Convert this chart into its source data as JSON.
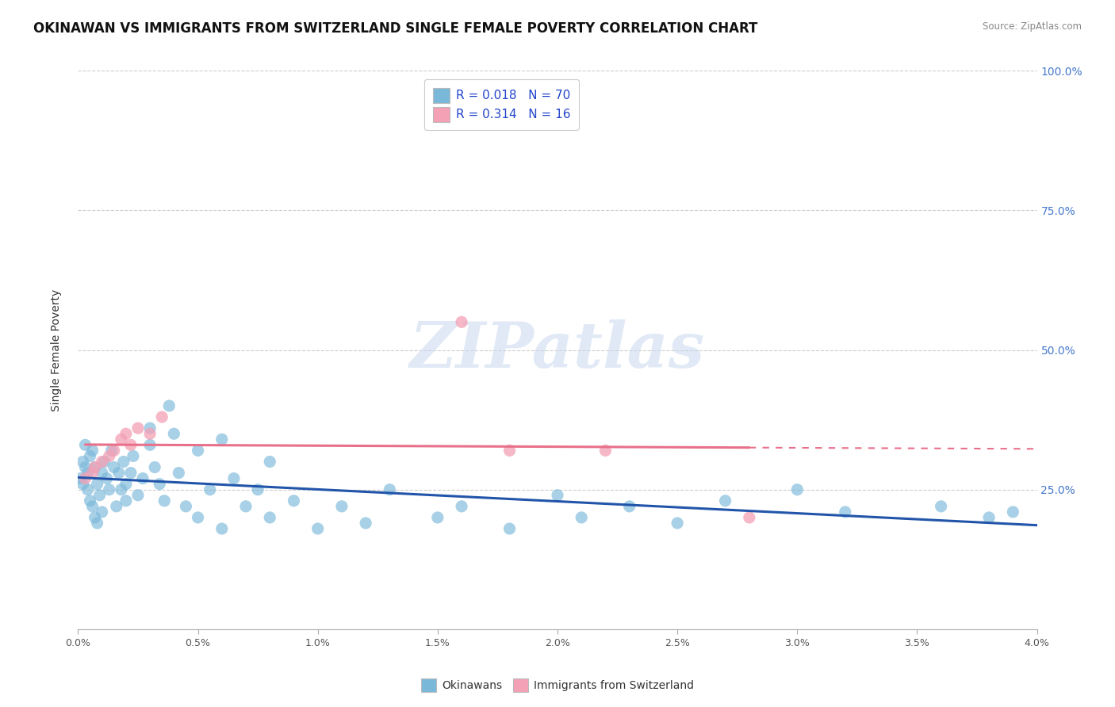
{
  "title": "OKINAWAN VS IMMIGRANTS FROM SWITZERLAND SINGLE FEMALE POVERTY CORRELATION CHART",
  "source_text": "Source: ZipAtlas.com",
  "ylabel": "Single Female Poverty",
  "x_min": 0.0,
  "x_max": 0.04,
  "y_min": 0.0,
  "y_max": 1.0,
  "x_tick_labels": [
    "0.0%",
    "0.5%",
    "1.0%",
    "1.5%",
    "2.0%",
    "2.5%",
    "3.0%",
    "3.5%",
    "4.0%"
  ],
  "x_tick_values": [
    0.0,
    0.005,
    0.01,
    0.015,
    0.02,
    0.025,
    0.03,
    0.035,
    0.04
  ],
  "y_tick_labels": [
    "100.0%",
    "75.0%",
    "50.0%",
    "25.0%"
  ],
  "y_tick_values": [
    1.0,
    0.75,
    0.5,
    0.25
  ],
  "okinawan_color": "#7ab8d9",
  "switzerland_color": "#f4a0b5",
  "okinawan_line_color": "#2255aa",
  "switzerland_line_color": "#e8708a",
  "legend_label_1": "R = 0.018   N = 70",
  "legend_label_2": "R = 0.314   N = 16",
  "bottom_legend_1": "Okinawans",
  "bottom_legend_2": "Immigrants from Switzerland",
  "watermark": "ZIPatlas",
  "background_color": "#ffffff",
  "okinawan_x": [
    0.0001,
    0.0002,
    0.0002,
    0.0003,
    0.0003,
    0.0004,
    0.0004,
    0.0005,
    0.0005,
    0.0006,
    0.0006,
    0.0007,
    0.0007,
    0.0008,
    0.0008,
    0.0009,
    0.001,
    0.001,
    0.0011,
    0.0012,
    0.0013,
    0.0014,
    0.0015,
    0.0016,
    0.0017,
    0.0018,
    0.0019,
    0.002,
    0.002,
    0.0022,
    0.0023,
    0.0025,
    0.0027,
    0.003,
    0.003,
    0.0032,
    0.0034,
    0.0036,
    0.0038,
    0.004,
    0.0042,
    0.0045,
    0.005,
    0.005,
    0.0055,
    0.006,
    0.006,
    0.0065,
    0.007,
    0.0075,
    0.008,
    0.008,
    0.009,
    0.01,
    0.011,
    0.012,
    0.013,
    0.015,
    0.016,
    0.018,
    0.02,
    0.021,
    0.023,
    0.025,
    0.027,
    0.03,
    0.032,
    0.036,
    0.038,
    0.039
  ],
  "okinawan_y": [
    0.27,
    0.3,
    0.26,
    0.29,
    0.33,
    0.28,
    0.25,
    0.31,
    0.23,
    0.32,
    0.22,
    0.29,
    0.2,
    0.26,
    0.19,
    0.24,
    0.28,
    0.21,
    0.3,
    0.27,
    0.25,
    0.32,
    0.29,
    0.22,
    0.28,
    0.25,
    0.3,
    0.26,
    0.23,
    0.28,
    0.31,
    0.24,
    0.27,
    0.36,
    0.33,
    0.29,
    0.26,
    0.23,
    0.4,
    0.35,
    0.28,
    0.22,
    0.32,
    0.2,
    0.25,
    0.34,
    0.18,
    0.27,
    0.22,
    0.25,
    0.2,
    0.3,
    0.23,
    0.18,
    0.22,
    0.19,
    0.25,
    0.2,
    0.22,
    0.18,
    0.24,
    0.2,
    0.22,
    0.19,
    0.23,
    0.25,
    0.21,
    0.22,
    0.2,
    0.21
  ],
  "switzerland_x": [
    0.0003,
    0.0006,
    0.0007,
    0.001,
    0.0013,
    0.0015,
    0.0018,
    0.002,
    0.0022,
    0.0025,
    0.003,
    0.0035,
    0.016,
    0.018,
    0.022,
    0.028
  ],
  "switzerland_y": [
    0.27,
    0.28,
    0.29,
    0.3,
    0.31,
    0.32,
    0.34,
    0.35,
    0.33,
    0.36,
    0.35,
    0.38,
    0.55,
    0.32,
    0.32,
    0.2
  ],
  "title_fontsize": 12,
  "axis_label_fontsize": 10,
  "tick_fontsize": 9,
  "legend_fontsize": 11
}
